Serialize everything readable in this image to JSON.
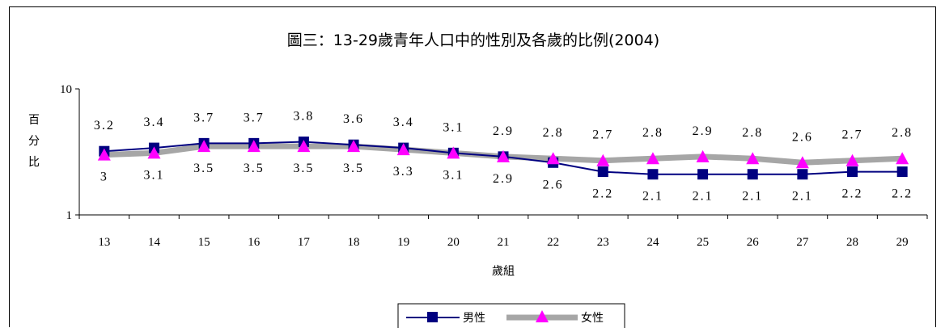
{
  "chart_data": {
    "type": "line",
    "title": "圖三：13-29歲青年人口中的性別及各歲的比例(2004)",
    "xlabel": "歲組",
    "ylabel": "百分比",
    "y_scale": "log",
    "ylim": [
      1,
      10
    ],
    "y_ticks": [
      "10",
      "1"
    ],
    "categories": [
      "13",
      "14",
      "15",
      "16",
      "17",
      "18",
      "19",
      "20",
      "21",
      "22",
      "23",
      "24",
      "25",
      "26",
      "27",
      "28",
      "29"
    ],
    "series": [
      {
        "name": "男性",
        "color": "#000080",
        "marker": "square",
        "values": [
          3.2,
          3.4,
          3.7,
          3.7,
          3.8,
          3.6,
          3.4,
          3.1,
          2.9,
          2.6,
          2.2,
          2.1,
          2.1,
          2.1,
          2.1,
          2.2,
          2.2
        ],
        "labels": [
          "3.2",
          "3.4",
          "3.7",
          "3.7",
          "3.8",
          "3.6",
          "3.4",
          "3.1",
          "2.9",
          "2.6",
          "2.2",
          "2.1",
          "2.1",
          "2.1",
          "2.1",
          "2.2",
          "2.2"
        ]
      },
      {
        "name": "女性",
        "color": "#ff00ff",
        "line_color": "#a6a6a6",
        "marker": "triangle",
        "values": [
          3.0,
          3.1,
          3.5,
          3.5,
          3.5,
          3.5,
          3.3,
          3.1,
          2.9,
          2.8,
          2.7,
          2.8,
          2.9,
          2.8,
          2.6,
          2.7,
          2.8
        ],
        "labels": [
          "3",
          "3.1",
          "3.5",
          "3.5",
          "3.5",
          "3.5",
          "3.3",
          "3.1",
          "2.9",
          "2.8",
          "2.7",
          "2.8",
          "2.9",
          "2.8",
          "2.6",
          "2.7",
          "2.8"
        ]
      }
    ],
    "legend_position": "bottom",
    "grid": false
  }
}
